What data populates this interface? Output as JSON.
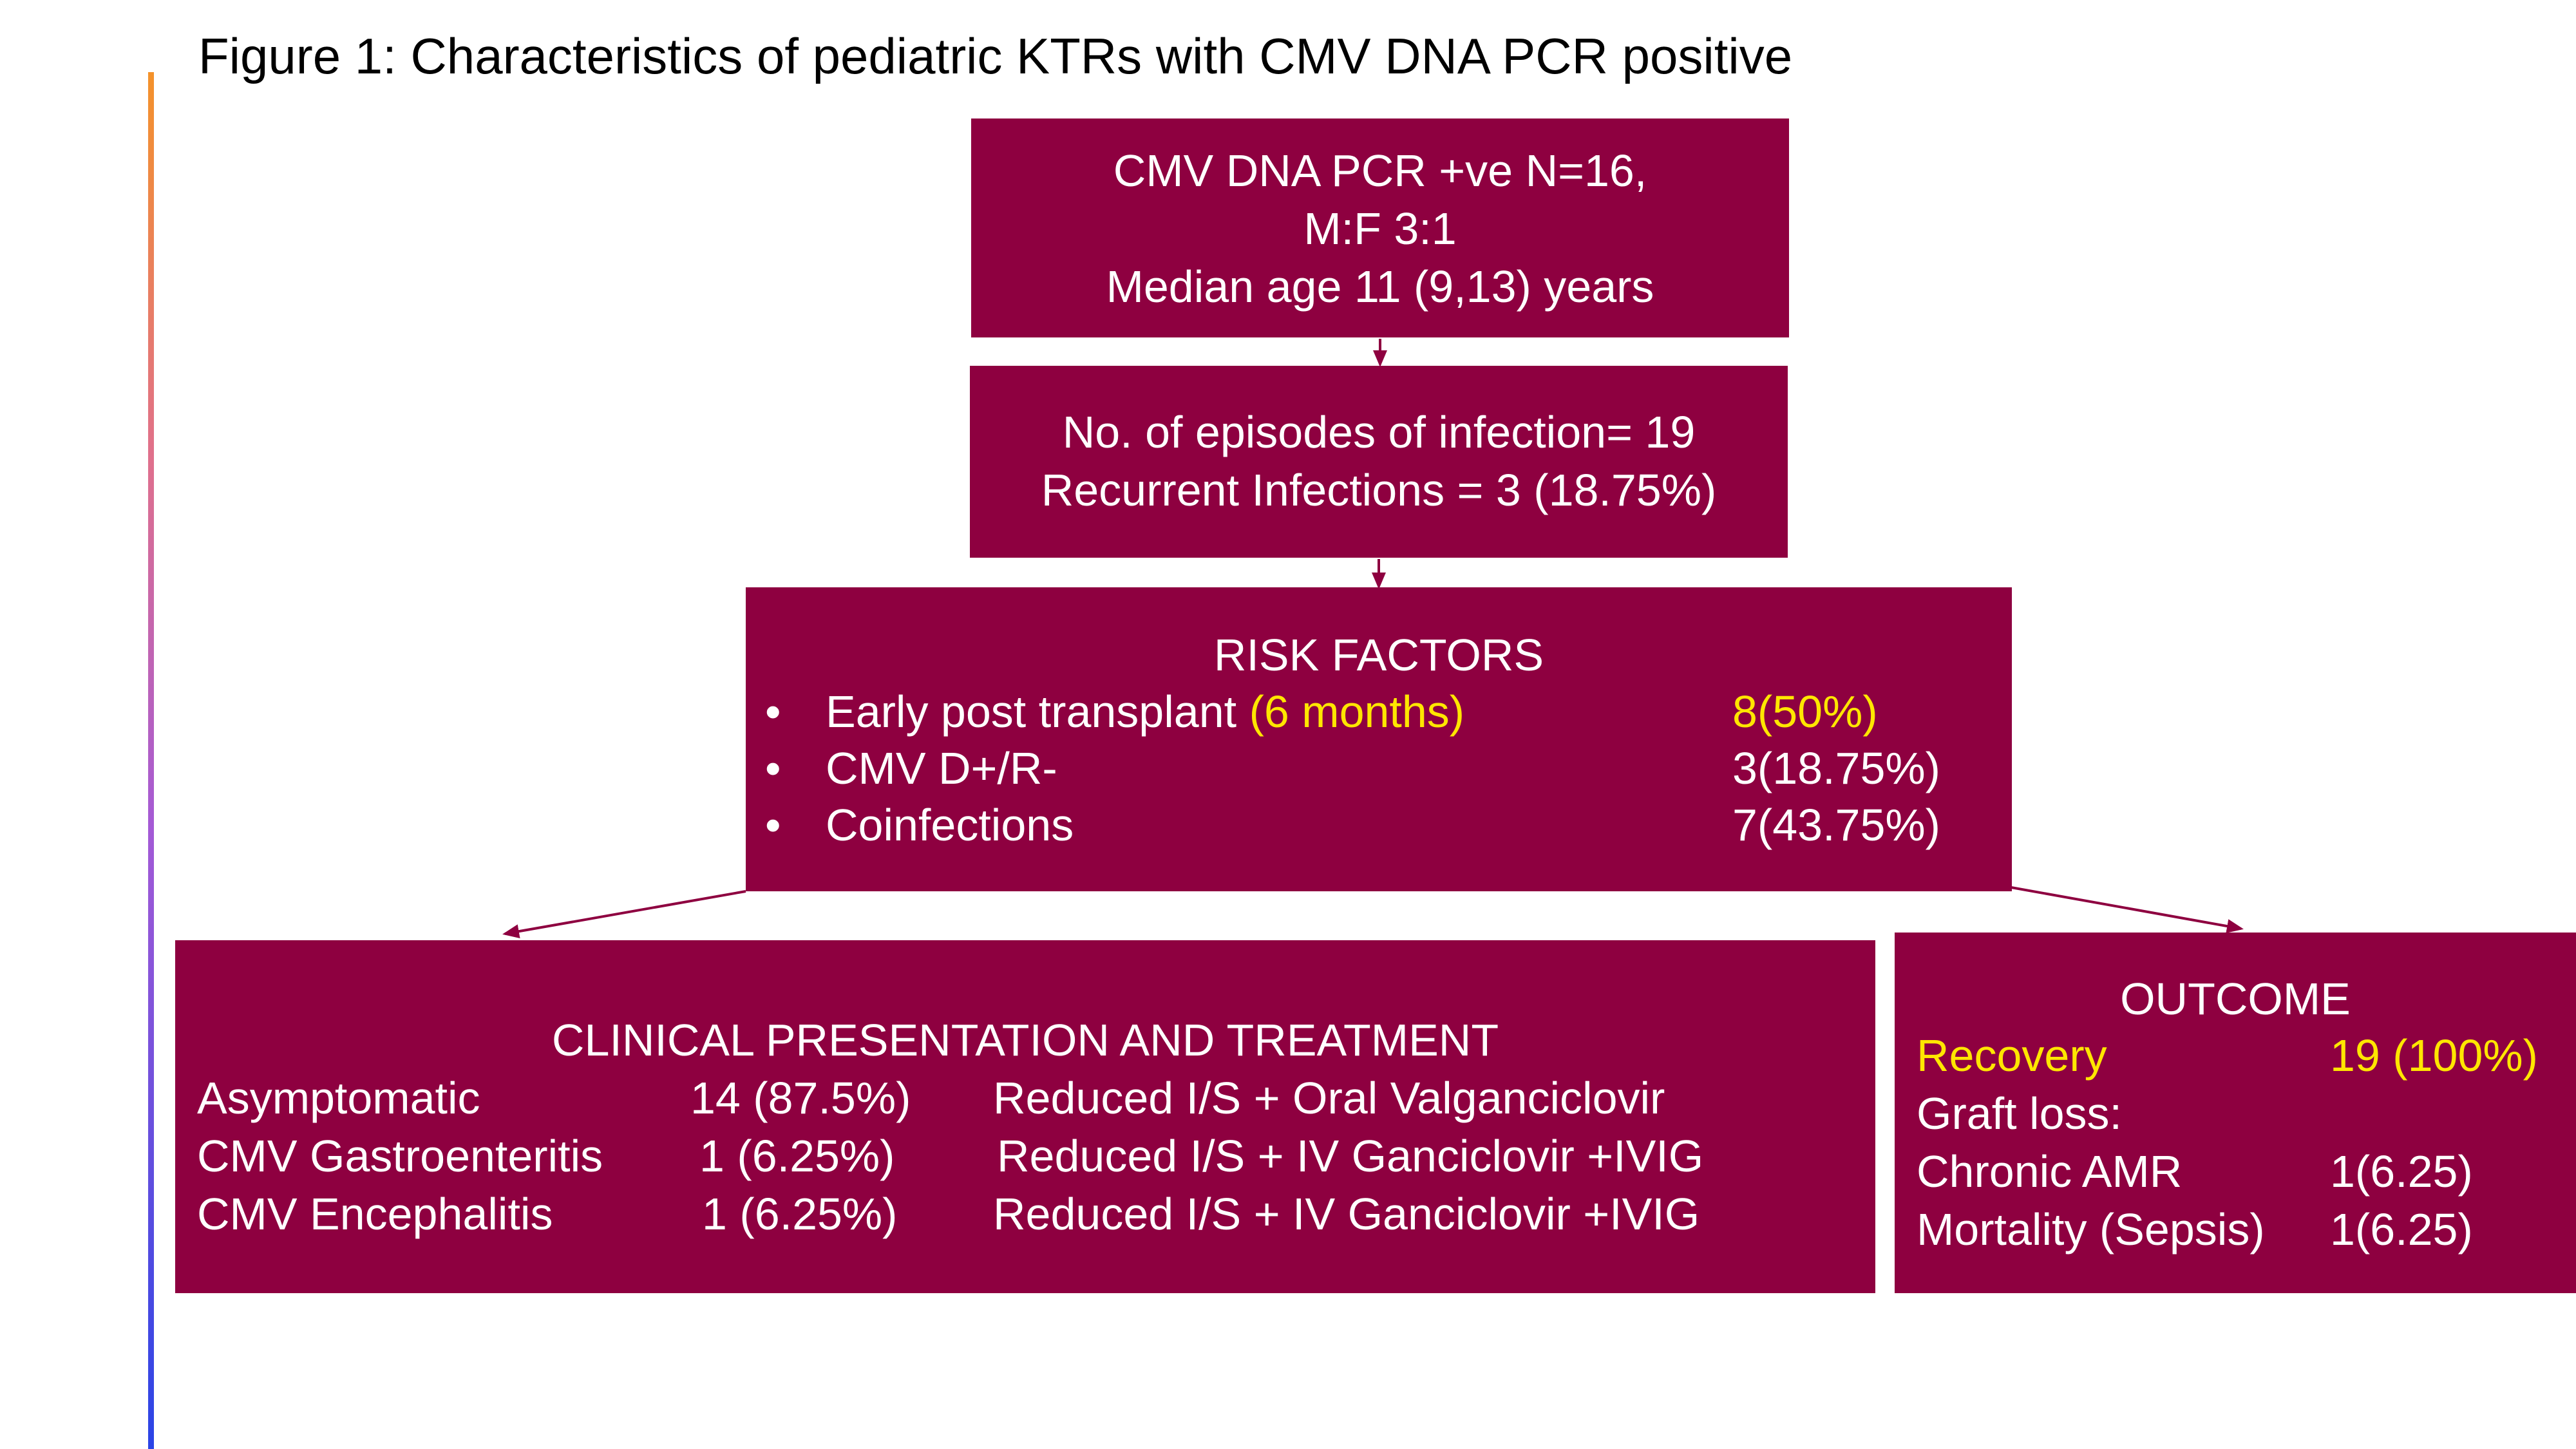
{
  "title": "Figure 1: Characteristics of pediatric KTRs with CMV DNA PCR positive",
  "colors": {
    "box_fill": "#8e0040",
    "text": "#ffffff",
    "highlight": "#ffe600"
  },
  "box1": {
    "line1": "CMV DNA PCR +ve N=16,",
    "line2": "M:F 3:1",
    "line3": "Median age 11 (9,13) years"
  },
  "box2": {
    "line1": "No. of episodes of infection= 19",
    "line2": "Recurrent Infections = 3 (18.75%)"
  },
  "risk": {
    "heading": "RISK FACTORS",
    "bullet": "•",
    "items": [
      {
        "label": "Early post transplant",
        "note": "(6 months)",
        "value": "8(50%)"
      },
      {
        "label": "CMV D+/R-",
        "value": "3(18.75%)"
      },
      {
        "label": "Coinfections",
        "value": "7(43.75%)"
      }
    ]
  },
  "clinical": {
    "heading": "CLINICAL PRESENTATION AND TREATMENT",
    "rows": [
      {
        "presentation": "Asymptomatic",
        "count": "14 (87.5%)",
        "treatment": "Reduced I/S + Oral Valganciclovir"
      },
      {
        "presentation": "CMV Gastroenteritis",
        "count": "1 (6.25%)",
        "treatment": "Reduced I/S + IV Ganciclovir +IVIG"
      },
      {
        "presentation": "CMV Encephalitis",
        "count": "1 (6.25%)",
        "treatment": "Reduced I/S + IV Ganciclovir +IVIG"
      }
    ]
  },
  "outcome": {
    "heading": "OUTCOME",
    "rows": [
      {
        "label": "Recovery",
        "value": "19 (100%)"
      },
      {
        "label": "Graft loss:",
        "value": ""
      },
      {
        "label": "Chronic AMR",
        "value": "1(6.25)"
      },
      {
        "label": "Mortality (Sepsis)",
        "value": "1(6.25)"
      }
    ]
  }
}
